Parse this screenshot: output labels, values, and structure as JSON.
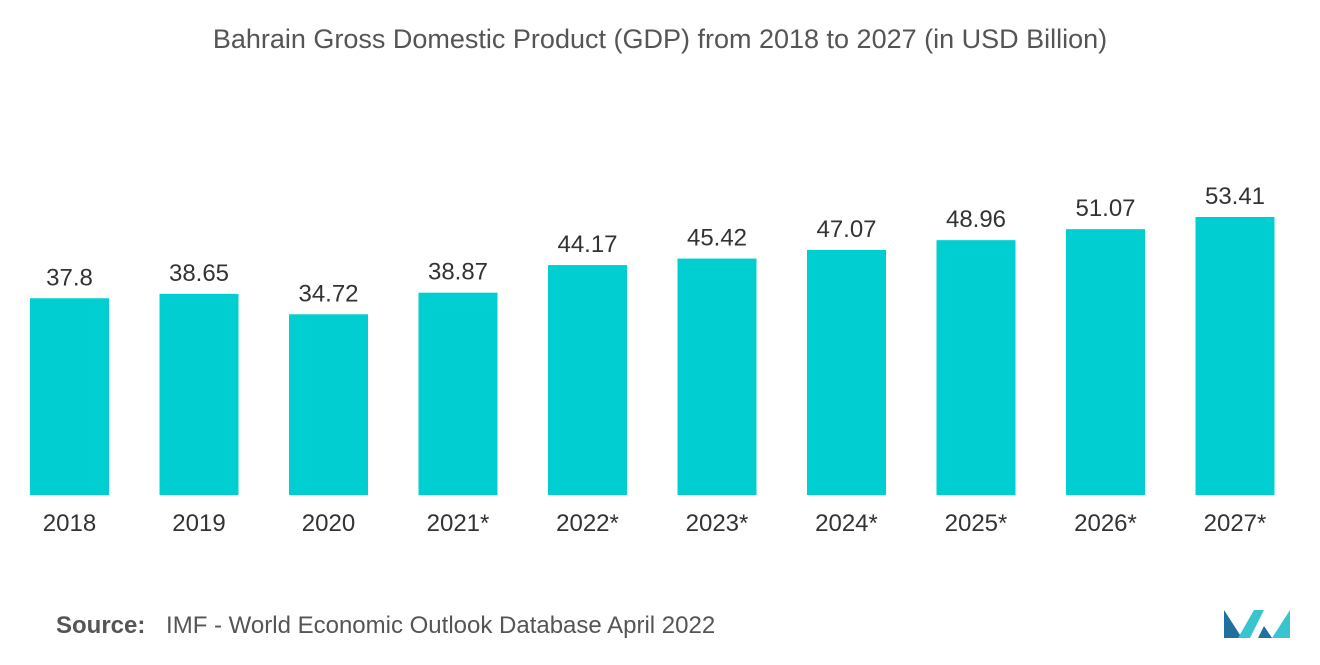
{
  "chart_data": {
    "type": "bar",
    "title": "Bahrain Gross Domestic Product (GDP) from 2018 to 2027 (in USD Billion)",
    "categories": [
      "2018",
      "2019",
      "2020",
      "2021*",
      "2022*",
      "2023*",
      "2024*",
      "2025*",
      "2026*",
      "2027*"
    ],
    "values": [
      37.8,
      38.65,
      34.72,
      38.87,
      44.17,
      45.42,
      47.07,
      48.96,
      51.07,
      53.41
    ],
    "value_labels": [
      "37.8",
      "38.65",
      "34.72",
      "38.87",
      "44.17",
      "45.42",
      "47.07",
      "48.96",
      "51.07",
      "53.41"
    ],
    "ylim": [
      0,
      53.41
    ],
    "grid": false,
    "bar_color": "#00CED1"
  },
  "source": {
    "label": "Source:",
    "text": "IMF - World Economic Outlook Database April 2022"
  },
  "logo": {
    "icon": "mordor-intelligence-logo",
    "colors": [
      "#1F6F9F",
      "#39C5CF"
    ]
  }
}
